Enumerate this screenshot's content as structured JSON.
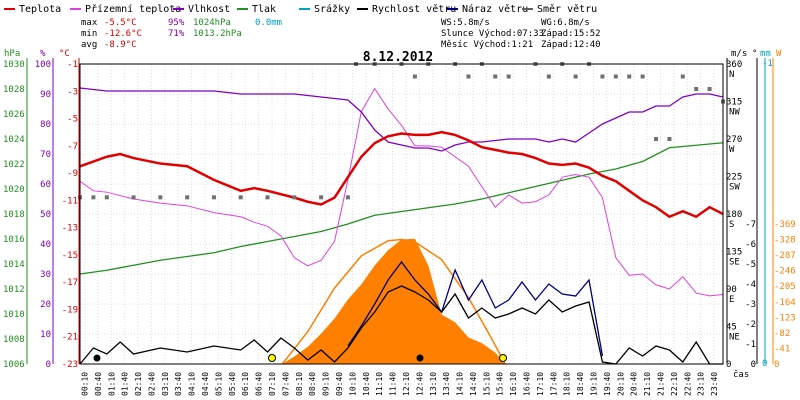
{
  "chart_data": {
    "type": "line",
    "title": "8.12.2012",
    "xlabel": "čas",
    "x_ticks": [
      "00:10",
      "00:40",
      "01:10",
      "01:40",
      "02:10",
      "02:40",
      "03:10",
      "03:40",
      "04:10",
      "04:40",
      "05:10",
      "05:40",
      "06:10",
      "06:40",
      "07:10",
      "07:40",
      "08:10",
      "08:40",
      "09:10",
      "09:40",
      "10:10",
      "10:40",
      "11:10",
      "11:40",
      "12:10",
      "12:40",
      "13:10",
      "13:40",
      "14:10",
      "14:40",
      "15:10",
      "15:40",
      "16:10",
      "16:40",
      "17:10",
      "17:40",
      "18:10",
      "18:40",
      "19:10",
      "19:40",
      "20:10",
      "20:40",
      "21:10",
      "21:40",
      "22:10",
      "22:40",
      "23:10",
      "23:40"
    ],
    "legend": [
      {
        "name": "Teplota",
        "color": "#e00000"
      },
      {
        "name": "Přízemní teplota",
        "color": "#e040e0"
      },
      {
        "name": "Vlhkost",
        "color": "#8000c0"
      },
      {
        "name": "Tlak",
        "color": "#209020"
      },
      {
        "name": "Srážky",
        "color": "#00a0c0"
      },
      {
        "name": "Rychlost větru",
        "color": "#000000"
      },
      {
        "name": "Náraz větru",
        "color": "#000080"
      },
      {
        "name": "Směr větru",
        "color": "#606060"
      }
    ],
    "stats": {
      "max": {
        "label": "max",
        "temp": "-5.5°C",
        "hum": "95%",
        "press": "1024hPa",
        "rain": "0.0mm"
      },
      "min": {
        "label": "min",
        "temp": "-12.6°C",
        "hum": "71%",
        "press": "1013.2hPa"
      },
      "avg": {
        "label": "avg",
        "temp": "-8.9°C"
      },
      "ws": "WS:5.8m/s",
      "wg": "WG:6.8m/s",
      "sunrise": "Slunce Východ:07:33",
      "sunset": "Západ:15:52",
      "moonrise": "Měsíc Východ:1:21",
      "moonset": "Západ:12:40"
    },
    "axes": {
      "hpa": {
        "unit": "hPa",
        "ticks": [
          "1030",
          "1028",
          "1026",
          "1024",
          "1022",
          "1020",
          "1018",
          "1016",
          "1014",
          "1012",
          "1010",
          "1008",
          "1006"
        ]
      },
      "pct": {
        "unit": "%",
        "ticks": [
          "100",
          "90",
          "80",
          "70",
          "60",
          "50",
          "40",
          "30",
          "20",
          "10",
          "0"
        ]
      },
      "temp": {
        "unit": "°C",
        "ticks": [
          "-1",
          "-3",
          "-5",
          "-7",
          "-9",
          "-11",
          "-13",
          "-15",
          "-17",
          "-19",
          "-21",
          "-23"
        ],
        "ylim": [
          -23,
          -1
        ]
      },
      "dir": {
        "unit": "°",
        "ticks": [
          [
            "360",
            "N"
          ],
          [
            "315",
            "NW"
          ],
          [
            "270",
            "W"
          ],
          [
            "225",
            "SW"
          ],
          [
            "180",
            "S"
          ],
          [
            "135",
            "SE"
          ],
          [
            "90",
            "E"
          ],
          [
            "45",
            "NE"
          ],
          [
            "0",
            ""
          ]
        ]
      },
      "ms": {
        "unit": "m/s",
        "ticks": [
          "-7",
          "-6",
          "-5",
          "-4",
          "-3",
          "-2",
          "-1",
          "0"
        ]
      },
      "mm": {
        "unit": "mm",
        "ticks": [
          "-1",
          "0"
        ]
      },
      "wm2": {
        "unit": "W",
        "ticks": [
          "-369",
          "-328",
          "-287",
          "-246",
          "-205",
          "-164",
          "-123",
          "-82",
          "-41",
          "0"
        ]
      }
    },
    "temperature": [
      [
        0,
        -8.5
      ],
      [
        1,
        -7.8
      ],
      [
        1.5,
        -7.6
      ],
      [
        2,
        -7.9
      ],
      [
        3,
        -8.3
      ],
      [
        4,
        -8.5
      ],
      [
        5,
        -9.5
      ],
      [
        6,
        -10.3
      ],
      [
        6.5,
        -10.1
      ],
      [
        7,
        -10.3
      ],
      [
        8,
        -10.8
      ],
      [
        8.5,
        -11.1
      ],
      [
        9,
        -11.3
      ],
      [
        9.5,
        -10.8
      ],
      [
        10,
        -9.3
      ],
      [
        10.5,
        -7.8
      ],
      [
        11,
        -6.8
      ],
      [
        11.5,
        -6.3
      ],
      [
        12,
        -6.1
      ],
      [
        12.5,
        -6.2
      ],
      [
        13,
        -6.2
      ],
      [
        13.5,
        -6.0
      ],
      [
        14,
        -6.2
      ],
      [
        14.5,
        -6.6
      ],
      [
        15,
        -7.1
      ],
      [
        15.5,
        -7.3
      ],
      [
        16,
        -7.5
      ],
      [
        16.5,
        -7.6
      ],
      [
        17,
        -7.9
      ],
      [
        17.5,
        -8.3
      ],
      [
        18,
        -8.4
      ],
      [
        18.5,
        -8.3
      ],
      [
        19,
        -8.6
      ],
      [
        19.5,
        -9.2
      ],
      [
        20,
        -9.6
      ],
      [
        20.5,
        -10.3
      ],
      [
        21,
        -11.0
      ],
      [
        21.5,
        -11.5
      ],
      [
        22,
        -12.2
      ],
      [
        22.5,
        -11.8
      ],
      [
        23,
        -12.2
      ],
      [
        23.5,
        -11.5
      ],
      [
        24,
        -12.0
      ]
    ],
    "ground_temperature": [
      [
        0,
        -9.6
      ],
      [
        0.5,
        -10.3
      ],
      [
        1,
        -10.4
      ],
      [
        2,
        -10.9
      ],
      [
        3,
        -11.2
      ],
      [
        4,
        -11.4
      ],
      [
        5,
        -11.9
      ],
      [
        6,
        -12.2
      ],
      [
        6.5,
        -12.6
      ],
      [
        7,
        -12.9
      ],
      [
        7.5,
        -13.6
      ],
      [
        8,
        -15.2
      ],
      [
        8.5,
        -15.8
      ],
      [
        9,
        -15.4
      ],
      [
        9.5,
        -14.0
      ],
      [
        10,
        -9.5
      ],
      [
        10.5,
        -4.5
      ],
      [
        11,
        -2.8
      ],
      [
        11.5,
        -4.3
      ],
      [
        12,
        -5.5
      ],
      [
        12.5,
        -7.0
      ],
      [
        13,
        -7.0
      ],
      [
        13.5,
        -7.1
      ],
      [
        14,
        -7.8
      ],
      [
        14.5,
        -8.5
      ],
      [
        15,
        -10.0
      ],
      [
        15.5,
        -11.5
      ],
      [
        16,
        -10.6
      ],
      [
        16.5,
        -11.2
      ],
      [
        17,
        -11.1
      ],
      [
        17.5,
        -10.6
      ],
      [
        18,
        -9.3
      ],
      [
        18.5,
        -9.1
      ],
      [
        19,
        -9.3
      ],
      [
        19.5,
        -10.8
      ],
      [
        20,
        -15.2
      ],
      [
        20.5,
        -16.5
      ],
      [
        21,
        -16.4
      ],
      [
        21.5,
        -17.2
      ],
      [
        22,
        -17.5
      ],
      [
        22.5,
        -16.6
      ],
      [
        23,
        -17.8
      ],
      [
        23.5,
        -18.0
      ],
      [
        24,
        -17.9
      ]
    ],
    "humidity": [
      [
        0,
        92
      ],
      [
        1,
        91
      ],
      [
        2,
        91
      ],
      [
        3,
        91
      ],
      [
        4,
        91
      ],
      [
        5,
        91
      ],
      [
        6,
        90
      ],
      [
        7,
        90
      ],
      [
        8,
        90
      ],
      [
        9,
        89
      ],
      [
        10,
        88
      ],
      [
        10.5,
        84
      ],
      [
        11,
        78
      ],
      [
        11.5,
        74
      ],
      [
        12,
        73
      ],
      [
        12.5,
        72
      ],
      [
        13,
        72
      ],
      [
        13.5,
        71
      ],
      [
        14,
        73
      ],
      [
        14.5,
        74
      ],
      [
        15,
        74
      ],
      [
        16,
        75
      ],
      [
        17,
        75
      ],
      [
        17.5,
        74
      ],
      [
        18,
        75
      ],
      [
        18.5,
        74
      ],
      [
        19,
        77
      ],
      [
        19.5,
        80
      ],
      [
        20,
        82
      ],
      [
        20.5,
        84
      ],
      [
        21,
        84
      ],
      [
        21.5,
        86
      ],
      [
        22,
        86
      ],
      [
        22.5,
        89
      ],
      [
        23,
        90
      ],
      [
        23.5,
        90
      ],
      [
        24,
        89
      ]
    ],
    "pressure": [
      [
        0,
        1013.2
      ],
      [
        1,
        1013.5
      ],
      [
        2,
        1013.9
      ],
      [
        3,
        1014.3
      ],
      [
        4,
        1014.6
      ],
      [
        5,
        1014.9
      ],
      [
        6,
        1015.4
      ],
      [
        7,
        1015.8
      ],
      [
        8,
        1016.2
      ],
      [
        9,
        1016.6
      ],
      [
        10,
        1017.2
      ],
      [
        11,
        1017.9
      ],
      [
        12,
        1018.2
      ],
      [
        13,
        1018.5
      ],
      [
        14,
        1018.8
      ],
      [
        15,
        1019.2
      ],
      [
        16,
        1019.7
      ],
      [
        17,
        1020.2
      ],
      [
        18,
        1020.7
      ],
      [
        19,
        1021.2
      ],
      [
        20,
        1021.6
      ],
      [
        21,
        1022.2
      ],
      [
        22,
        1023.3
      ],
      [
        23,
        1023.5
      ],
      [
        24,
        1023.7
      ]
    ],
    "wind_speed": [
      [
        0,
        0
      ],
      [
        0.5,
        0.8
      ],
      [
        1,
        0.5
      ],
      [
        1.5,
        1.1
      ],
      [
        2,
        0.5
      ],
      [
        3,
        0.8
      ],
      [
        4,
        0.6
      ],
      [
        5,
        0.9
      ],
      [
        6,
        0.7
      ],
      [
        6.5,
        1.2
      ],
      [
        7,
        0.6
      ],
      [
        7.5,
        1.3
      ],
      [
        8,
        0.8
      ],
      [
        8.5,
        0.2
      ],
      [
        9,
        0.7
      ],
      [
        9.5,
        0.1
      ],
      [
        10,
        0.8
      ],
      [
        10.5,
        1.8
      ],
      [
        11,
        2.6
      ],
      [
        11.5,
        3.6
      ],
      [
        12,
        3.9
      ],
      [
        12.5,
        3.6
      ],
      [
        13,
        3.2
      ],
      [
        13.5,
        2.6
      ],
      [
        14,
        3.5
      ],
      [
        14.5,
        2.3
      ],
      [
        15,
        2.8
      ],
      [
        15.5,
        2.3
      ],
      [
        16,
        2.5
      ],
      [
        16.5,
        2.8
      ],
      [
        17,
        2.5
      ],
      [
        17.5,
        3.2
      ],
      [
        18,
        2.6
      ],
      [
        18.5,
        2.9
      ],
      [
        19,
        3.1
      ],
      [
        19.5,
        0.1
      ],
      [
        20,
        0
      ],
      [
        20.5,
        0.8
      ],
      [
        21,
        0.4
      ],
      [
        21.5,
        0.9
      ],
      [
        22,
        0.7
      ],
      [
        22.5,
        0.1
      ],
      [
        23,
        1.1
      ],
      [
        23.5,
        0
      ],
      [
        24,
        0
      ]
    ],
    "wind_gust": [
      [
        10,
        0.9
      ],
      [
        10.5,
        1.9
      ],
      [
        11,
        3.0
      ],
      [
        11.5,
        4.2
      ],
      [
        12,
        5.1
      ],
      [
        12.5,
        4.2
      ],
      [
        13,
        3.5
      ],
      [
        13.5,
        2.6
      ],
      [
        14,
        4.7
      ],
      [
        14.5,
        3.2
      ],
      [
        15,
        4.2
      ],
      [
        15.5,
        2.8
      ],
      [
        16,
        3.2
      ],
      [
        16.5,
        4.1
      ],
      [
        17,
        3.2
      ],
      [
        17.5,
        4.0
      ],
      [
        18,
        3.5
      ],
      [
        18.5,
        3.4
      ],
      [
        19,
        4.2
      ],
      [
        19.5,
        0.4
      ]
    ],
    "solar_radiation": [
      [
        7.55,
        0
      ],
      [
        8,
        20
      ],
      [
        8.5,
        45
      ],
      [
        9,
        80
      ],
      [
        9.5,
        120
      ],
      [
        10,
        170
      ],
      [
        10.5,
        210
      ],
      [
        11,
        260
      ],
      [
        11.5,
        300
      ],
      [
        12,
        328
      ],
      [
        12.5,
        330
      ],
      [
        13,
        260
      ],
      [
        13.5,
        130
      ],
      [
        14,
        110
      ],
      [
        14.5,
        70
      ],
      [
        15,
        55
      ],
      [
        15.5,
        30
      ],
      [
        15.87,
        0
      ]
    ],
    "solar_theoretical": [
      [
        7.55,
        0
      ],
      [
        8.5,
        85
      ],
      [
        9.5,
        200
      ],
      [
        10.5,
        285
      ],
      [
        11.5,
        325
      ],
      [
        12,
        328
      ],
      [
        12.5,
        322
      ],
      [
        13.5,
        275
      ],
      [
        14.5,
        175
      ],
      [
        15.3,
        75
      ],
      [
        15.87,
        0
      ]
    ],
    "wind_direction": [
      [
        0,
        200
      ],
      [
        0.5,
        200
      ],
      [
        1,
        200
      ],
      [
        2,
        200
      ],
      [
        3,
        200
      ],
      [
        4,
        200
      ],
      [
        5,
        200
      ],
      [
        6,
        200
      ],
      [
        7,
        200
      ],
      [
        8,
        200
      ],
      [
        9,
        200
      ],
      [
        10,
        200
      ],
      [
        10.3,
        360
      ],
      [
        11,
        360
      ],
      [
        12,
        360
      ],
      [
        12.5,
        345
      ],
      [
        13,
        360
      ],
      [
        14,
        360
      ],
      [
        14.5,
        345
      ],
      [
        15,
        360
      ],
      [
        15.5,
        345
      ],
      [
        16,
        345
      ],
      [
        17,
        360
      ],
      [
        17.5,
        345
      ],
      [
        18,
        360
      ],
      [
        18.5,
        345
      ],
      [
        19,
        360
      ],
      [
        19.5,
        345
      ],
      [
        20,
        345
      ],
      [
        20.5,
        345
      ],
      [
        21,
        345
      ],
      [
        21.5,
        270
      ],
      [
        22,
        270
      ],
      [
        22.5,
        345
      ],
      [
        23,
        330
      ],
      [
        23.5,
        330
      ],
      [
        24,
        315
      ]
    ]
  }
}
